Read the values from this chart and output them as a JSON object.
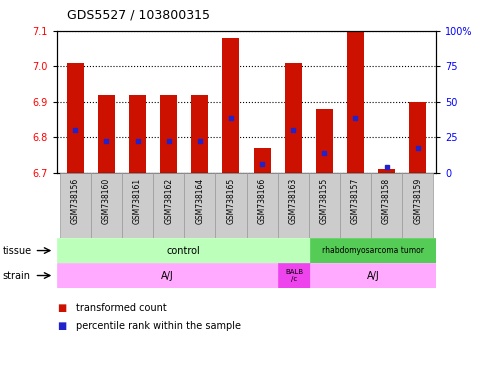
{
  "title": "GDS5527 / 103800315",
  "samples": [
    "GSM738156",
    "GSM738160",
    "GSM738161",
    "GSM738162",
    "GSM738164",
    "GSM738165",
    "GSM738166",
    "GSM738163",
    "GSM738155",
    "GSM738157",
    "GSM738158",
    "GSM738159"
  ],
  "bar_tops": [
    7.01,
    6.92,
    6.92,
    6.92,
    6.92,
    7.08,
    6.77,
    7.01,
    6.88,
    7.1,
    6.71,
    6.9
  ],
  "blue_vals": [
    6.82,
    6.79,
    6.79,
    6.79,
    6.79,
    6.855,
    6.725,
    6.82,
    6.755,
    6.855,
    6.715,
    6.77
  ],
  "bar_bottom": 6.7,
  "ylim_left": [
    6.7,
    7.1
  ],
  "ylim_right": [
    0,
    100
  ],
  "yticks_left": [
    6.7,
    6.8,
    6.9,
    7.0,
    7.1
  ],
  "yticks_right": [
    0,
    25,
    50,
    75,
    100
  ],
  "red_color": "#cc1100",
  "blue_color": "#2222cc",
  "bar_width": 0.55,
  "tissue_control_color": "#bbffbb",
  "tissue_tumor_color": "#55cc55",
  "strain_aj_color": "#ffaaff",
  "strain_balb_color": "#ee44ee",
  "sample_box_color": "#cccccc",
  "n_control": 8,
  "n_balb": 1,
  "n_tumor": 4
}
